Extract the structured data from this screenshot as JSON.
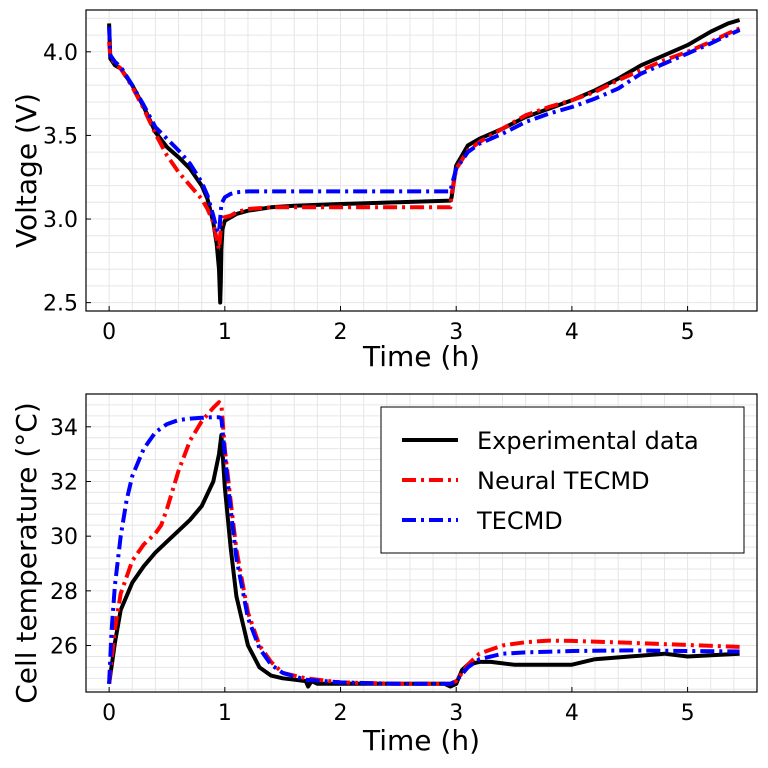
{
  "chart_data": [
    {
      "type": "line",
      "xlabel": "Time (h)",
      "ylabel": "Voltage (V)",
      "xlim": [
        -0.2,
        5.6
      ],
      "ylim": [
        2.45,
        4.25
      ],
      "xticks": [
        0,
        1,
        2,
        3,
        4,
        5
      ],
      "yticks": [
        2.5,
        3.0,
        3.5,
        4.0
      ],
      "ytick_labels": [
        "2.5",
        "3.0",
        "3.5",
        "4.0"
      ],
      "grid": true,
      "series": [
        {
          "name": "Experimental data",
          "color": "#000000",
          "dash": "solid",
          "x": [
            0,
            0.01,
            0.05,
            0.1,
            0.2,
            0.3,
            0.4,
            0.5,
            0.6,
            0.7,
            0.8,
            0.85,
            0.9,
            0.93,
            0.95,
            0.96,
            0.965,
            0.97,
            0.98,
            1.0,
            1.05,
            1.1,
            1.2,
            1.4,
            1.6,
            2.0,
            2.5,
            2.95,
            2.96,
            3.0,
            3.1,
            3.2,
            3.4,
            3.6,
            3.8,
            4.0,
            4.2,
            4.4,
            4.6,
            4.8,
            5.0,
            5.2,
            5.35,
            5.45
          ],
          "y": [
            4.17,
            3.96,
            3.92,
            3.9,
            3.8,
            3.67,
            3.52,
            3.43,
            3.37,
            3.3,
            3.2,
            3.12,
            2.98,
            2.85,
            2.7,
            2.5,
            2.62,
            2.82,
            2.94,
            2.99,
            3.01,
            3.03,
            3.05,
            3.07,
            3.08,
            3.09,
            3.1,
            3.11,
            3.13,
            3.32,
            3.44,
            3.48,
            3.54,
            3.61,
            3.66,
            3.71,
            3.77,
            3.84,
            3.92,
            3.98,
            4.04,
            4.12,
            4.17,
            4.19
          ]
        },
        {
          "name": "Neural TECMD",
          "color": "#ff0000",
          "dash": "dashdot",
          "x": [
            0,
            0.01,
            0.05,
            0.1,
            0.2,
            0.3,
            0.4,
            0.5,
            0.6,
            0.7,
            0.8,
            0.85,
            0.9,
            0.93,
            0.95,
            0.96,
            0.97,
            0.99,
            1.05,
            1.1,
            1.2,
            1.4,
            1.6,
            2.0,
            2.5,
            2.95,
            2.96,
            3.0,
            3.1,
            3.2,
            3.4,
            3.6,
            3.8,
            4.0,
            4.2,
            4.4,
            4.6,
            4.8,
            5.0,
            5.2,
            5.35,
            5.45
          ],
          "y": [
            4.06,
            3.97,
            3.93,
            3.9,
            3.79,
            3.66,
            3.51,
            3.38,
            3.28,
            3.2,
            3.12,
            3.06,
            2.98,
            2.88,
            2.82,
            2.9,
            2.98,
            3.01,
            3.02,
            3.04,
            3.06,
            3.07,
            3.07,
            3.07,
            3.07,
            3.07,
            3.15,
            3.3,
            3.41,
            3.46,
            3.54,
            3.62,
            3.67,
            3.71,
            3.76,
            3.83,
            3.89,
            3.95,
            4.0,
            4.06,
            4.11,
            4.14
          ]
        },
        {
          "name": "TECMD",
          "color": "#0000ff",
          "dash": "dashdot",
          "x": [
            0,
            0.01,
            0.05,
            0.1,
            0.2,
            0.3,
            0.4,
            0.5,
            0.6,
            0.7,
            0.8,
            0.85,
            0.9,
            0.93,
            0.95,
            0.96,
            0.97,
            1.0,
            1.05,
            1.1,
            1.2,
            1.5,
            2.0,
            2.5,
            2.95,
            2.96,
            3.0,
            3.1,
            3.2,
            3.4,
            3.6,
            3.8,
            4.0,
            4.2,
            4.4,
            4.6,
            4.8,
            5.0,
            5.2,
            5.35,
            5.45
          ],
          "y": [
            4.15,
            3.98,
            3.94,
            3.91,
            3.8,
            3.68,
            3.55,
            3.48,
            3.41,
            3.33,
            3.22,
            3.14,
            3.02,
            2.94,
            2.92,
            3.0,
            3.09,
            3.13,
            3.15,
            3.16,
            3.165,
            3.165,
            3.165,
            3.165,
            3.165,
            3.2,
            3.3,
            3.4,
            3.45,
            3.51,
            3.58,
            3.63,
            3.67,
            3.72,
            3.78,
            3.87,
            3.93,
            3.99,
            4.05,
            4.1,
            4.13
          ]
        }
      ]
    },
    {
      "type": "line",
      "xlabel": "Time (h)",
      "ylabel": "Cell temperature (°C)",
      "xlim": [
        -0.2,
        5.6
      ],
      "ylim": [
        24.3,
        35.2
      ],
      "xticks": [
        0,
        1,
        2,
        3,
        4,
        5
      ],
      "yticks": [
        26,
        28,
        30,
        32,
        34
      ],
      "ytick_labels": [
        "26",
        "28",
        "30",
        "32",
        "34"
      ],
      "grid": true,
      "legend": {
        "position": "upper-right",
        "entries": [
          "Experimental data",
          "Neural TECMD",
          "TECMD"
        ]
      },
      "series": [
        {
          "name": "Experimental data",
          "color": "#000000",
          "dash": "solid",
          "x": [
            0,
            0.05,
            0.1,
            0.2,
            0.3,
            0.4,
            0.5,
            0.6,
            0.7,
            0.8,
            0.9,
            0.95,
            0.97,
            1.0,
            1.05,
            1.1,
            1.2,
            1.3,
            1.4,
            1.5,
            1.6,
            1.7,
            1.72,
            1.75,
            1.8,
            2.0,
            2.5,
            2.9,
            2.95,
            3.0,
            3.05,
            3.1,
            3.2,
            3.3,
            3.5,
            4.0,
            4.2,
            4.5,
            4.8,
            5.0,
            5.45
          ],
          "y": [
            24.6,
            26.1,
            27.3,
            28.3,
            28.9,
            29.4,
            29.8,
            30.2,
            30.6,
            31.1,
            32.0,
            33.0,
            33.7,
            31.8,
            29.6,
            27.8,
            26.0,
            25.2,
            24.9,
            24.8,
            24.75,
            24.7,
            24.5,
            24.7,
            24.6,
            24.6,
            24.6,
            24.6,
            24.5,
            24.6,
            25.1,
            25.3,
            25.4,
            25.4,
            25.3,
            25.3,
            25.5,
            25.6,
            25.7,
            25.6,
            25.7
          ]
        },
        {
          "name": "Neural TECMD",
          "color": "#ff0000",
          "dash": "dashdot",
          "x": [
            0,
            0.05,
            0.1,
            0.2,
            0.3,
            0.4,
            0.45,
            0.5,
            0.6,
            0.7,
            0.8,
            0.9,
            0.95,
            0.97,
            1.0,
            1.05,
            1.1,
            1.2,
            1.3,
            1.4,
            1.5,
            1.7,
            2.0,
            2.5,
            2.95,
            3.0,
            3.1,
            3.2,
            3.4,
            3.6,
            3.8,
            4.0,
            4.5,
            5.0,
            5.45
          ],
          "y": [
            24.6,
            26.6,
            27.9,
            29.1,
            29.7,
            30.1,
            30.4,
            31.0,
            32.4,
            33.5,
            34.2,
            34.7,
            34.9,
            34.8,
            33.2,
            31.3,
            29.5,
            27.2,
            26.0,
            25.4,
            25.0,
            24.8,
            24.65,
            24.6,
            24.6,
            24.7,
            25.3,
            25.7,
            26.0,
            26.12,
            26.18,
            26.17,
            26.1,
            26.02,
            25.95
          ]
        },
        {
          "name": "TECMD",
          "color": "#0000ff",
          "dash": "dashdot",
          "x": [
            0,
            0.02,
            0.05,
            0.1,
            0.15,
            0.2,
            0.3,
            0.4,
            0.5,
            0.6,
            0.7,
            0.8,
            0.9,
            0.95,
            0.97,
            1.0,
            1.05,
            1.1,
            1.2,
            1.3,
            1.4,
            1.5,
            1.7,
            2.0,
            2.5,
            2.95,
            3.0,
            3.1,
            3.2,
            3.4,
            3.6,
            4.0,
            4.5,
            5.0,
            5.45
          ],
          "y": [
            24.6,
            26.5,
            28.2,
            30.0,
            31.3,
            32.2,
            33.2,
            33.8,
            34.1,
            34.25,
            34.3,
            34.33,
            34.35,
            34.35,
            34.3,
            33.0,
            31.0,
            29.2,
            27.0,
            25.9,
            25.3,
            25.0,
            24.75,
            24.65,
            24.6,
            24.6,
            24.7,
            25.2,
            25.5,
            25.7,
            25.75,
            25.8,
            25.82,
            25.8,
            25.78
          ]
        }
      ]
    }
  ]
}
